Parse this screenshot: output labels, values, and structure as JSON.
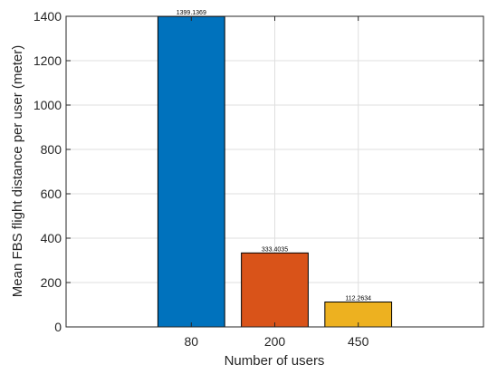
{
  "chart_data": {
    "type": "bar",
    "categories": [
      "80",
      "200",
      "450"
    ],
    "values": [
      1399.1369,
      333.4035,
      112.2634
    ],
    "data_labels": [
      "1399.1369",
      "333.4035",
      "112.2634"
    ],
    "bar_colors": [
      "#0072BD",
      "#D95319",
      "#EDB120"
    ],
    "xlabel": "Number of users",
    "ylabel": "Mean FBS flight distance per user (meter)",
    "ylim": [
      0,
      1400
    ],
    "yticks": [
      0,
      200,
      400,
      600,
      800,
      1000,
      1200,
      1400
    ],
    "grid": true,
    "legend": "none"
  }
}
